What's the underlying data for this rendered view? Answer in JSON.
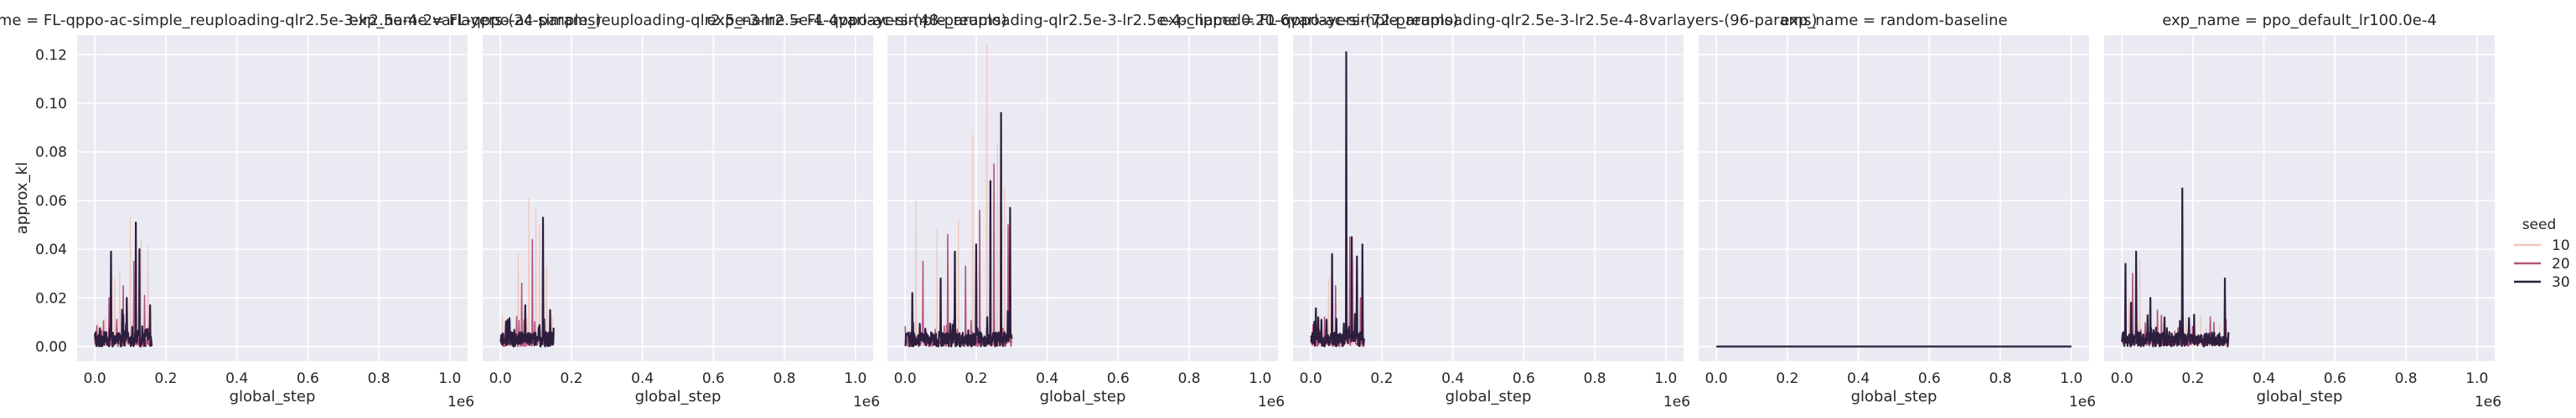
{
  "chart_data": {
    "type": "line",
    "facet_label_prefix": "exp_name = ",
    "xlabel": "global_step",
    "ylabel": "approx_kl",
    "x_offset_label": "1e6",
    "xticks": [
      "0.0",
      "0.2",
      "0.4",
      "0.6",
      "0.8",
      "1.0"
    ],
    "yticks": [
      "0.00",
      "0.02",
      "0.04",
      "0.06",
      "0.08",
      "0.10",
      "0.12"
    ],
    "xlim": [
      -0.05,
      1.05
    ],
    "ylim": [
      -0.006,
      0.128
    ],
    "grid": true,
    "legend": {
      "title": "seed",
      "placement": "right",
      "entries": [
        "10",
        "20",
        "30"
      ],
      "colors": [
        "#f1c5bd",
        "#b4547a",
        "#2d1e3e"
      ]
    },
    "panels": [
      {
        "title": "FL-qppo-ac-simple_reuploading-qlr2.5e-3-lr2.5e-4-2varlayers-(24-params)",
        "x_max": 0.16,
        "series": [
          {
            "seed": "10",
            "spikes": [
              [
                0.03,
                0.012
              ],
              [
                0.055,
                0.028
              ],
              [
                0.07,
                0.031
              ],
              [
                0.1,
                0.053
              ],
              [
                0.13,
                0.044
              ],
              [
                0.15,
                0.041
              ]
            ]
          },
          {
            "seed": "20",
            "spikes": [
              [
                0.04,
                0.02
              ],
              [
                0.08,
                0.025
              ],
              [
                0.11,
                0.035
              ],
              [
                0.14,
                0.021
              ]
            ]
          },
          {
            "seed": "30",
            "spikes": [
              [
                0.045,
                0.039
              ],
              [
                0.09,
                0.02
              ],
              [
                0.115,
                0.051
              ],
              [
                0.125,
                0.04
              ],
              [
                0.155,
                0.017
              ]
            ]
          }
        ]
      },
      {
        "title": "FL-qppo-ac-simple_reuploading-qlr2.5e-3-lr2.5e-4-4varlayers-(48-params)",
        "x_max": 0.15,
        "series": [
          {
            "seed": "10",
            "spikes": [
              [
                0.05,
                0.038
              ],
              [
                0.08,
                0.061
              ],
              [
                0.1,
                0.057
              ],
              [
                0.11,
                0.05
              ],
              [
                0.13,
                0.033
              ]
            ]
          },
          {
            "seed": "20",
            "spikes": [
              [
                0.06,
                0.026
              ],
              [
                0.09,
                0.044
              ],
              [
                0.12,
                0.029
              ]
            ]
          },
          {
            "seed": "30",
            "spikes": [
              [
                0.02,
                0.011
              ],
              [
                0.07,
                0.017
              ],
              [
                0.12,
                0.053
              ],
              [
                0.14,
                0.015
              ]
            ]
          }
        ]
      },
      {
        "title": "FL-qppo-ac-simple_reuploading-qlr2.5e-3-lr2.5e-4-clipped0.20-6varlayers-(72-params)",
        "x_max": 0.3,
        "series": [
          {
            "seed": "10",
            "spikes": [
              [
                0.03,
                0.06
              ],
              [
                0.09,
                0.048
              ],
              [
                0.15,
                0.052
              ],
              [
                0.19,
                0.087
              ],
              [
                0.23,
                0.124
              ],
              [
                0.26,
                0.083
              ],
              [
                0.28,
                0.065
              ]
            ]
          },
          {
            "seed": "20",
            "spikes": [
              [
                0.05,
                0.035
              ],
              [
                0.12,
                0.046
              ],
              [
                0.17,
                0.033
              ],
              [
                0.21,
                0.056
              ],
              [
                0.25,
                0.075
              ],
              [
                0.29,
                0.05
              ]
            ]
          },
          {
            "seed": "30",
            "spikes": [
              [
                0.02,
                0.022
              ],
              [
                0.1,
                0.028
              ],
              [
                0.14,
                0.039
              ],
              [
                0.2,
                0.042
              ],
              [
                0.24,
                0.068
              ],
              [
                0.27,
                0.096
              ],
              [
                0.295,
                0.057
              ]
            ]
          }
        ]
      },
      {
        "title": "FL-qppo-ac-simple_reuploading-qlr2.5e-3-lr2.5e-4-8varlayers-(96-params)",
        "x_max": 0.15,
        "series": [
          {
            "seed": "10",
            "spikes": [
              [
                0.05,
                0.028
              ],
              [
                0.12,
                0.036
              ]
            ]
          },
          {
            "seed": "20",
            "spikes": [
              [
                0.07,
                0.025
              ],
              [
                0.11,
                0.045
              ],
              [
                0.14,
                0.02
              ]
            ]
          },
          {
            "seed": "30",
            "spikes": [
              [
                0.03,
                0.011
              ],
              [
                0.06,
                0.038
              ],
              [
                0.1,
                0.121
              ],
              [
                0.115,
                0.045
              ],
              [
                0.13,
                0.037
              ],
              [
                0.145,
                0.042
              ]
            ]
          }
        ]
      },
      {
        "title": "random-baseline",
        "x_max": 1.0,
        "series": [
          {
            "seed": "30",
            "spikes": []
          }
        ]
      },
      {
        "title": "ppo_default_lr100.0e-4",
        "x_max": 0.3,
        "series": [
          {
            "seed": "10",
            "spikes": [
              [
                0.02,
                0.02
              ],
              [
                0.05,
                0.036
              ]
            ]
          },
          {
            "seed": "20",
            "spikes": [
              [
                0.03,
                0.03
              ],
              [
                0.1,
                0.015
              ]
            ]
          },
          {
            "seed": "30",
            "spikes": [
              [
                0.01,
                0.034
              ],
              [
                0.025,
                0.018
              ],
              [
                0.04,
                0.039
              ],
              [
                0.08,
                0.02
              ],
              [
                0.12,
                0.012
              ],
              [
                0.17,
                0.065
              ],
              [
                0.29,
                0.028
              ]
            ]
          }
        ]
      }
    ]
  }
}
